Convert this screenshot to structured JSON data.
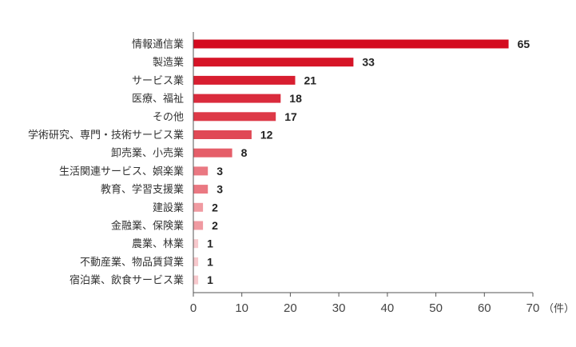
{
  "chart_data": {
    "type": "bar",
    "orientation": "horizontal",
    "title": "",
    "xlabel": "",
    "ylabel": "",
    "unit_label": "（件）",
    "xlim": [
      0,
      70
    ],
    "xticks": [
      0,
      10,
      20,
      30,
      40,
      50,
      60,
      70
    ],
    "grid": false,
    "legend": "none",
    "categories": [
      "情報通信業",
      "製造業",
      "サービス業",
      "医療、福祉",
      "その他",
      "学術研究、専門・技術サービス業",
      "卸売業、小売業",
      "生活関連サービス、娯楽業",
      "教育、学習支援業",
      "建設業",
      "金融業、保険業",
      "農業、林業",
      "不動産業、物品賃貸業",
      "宿泊業、飲食サービス業"
    ],
    "values": [
      65,
      33,
      21,
      18,
      17,
      12,
      8,
      3,
      3,
      2,
      2,
      1,
      1,
      1
    ],
    "bar_colors": [
      "#d40b1f",
      "#d61427",
      "#d81e30",
      "#da2b3c",
      "#dd3947",
      "#e04955",
      "#e55e69",
      "#ea7882",
      "#ea7882",
      "#f09aa1",
      "#f09aa1",
      "#f7c8cc",
      "#f7c8cc",
      "#f7c8cc"
    ],
    "axis_color": "#555555"
  }
}
